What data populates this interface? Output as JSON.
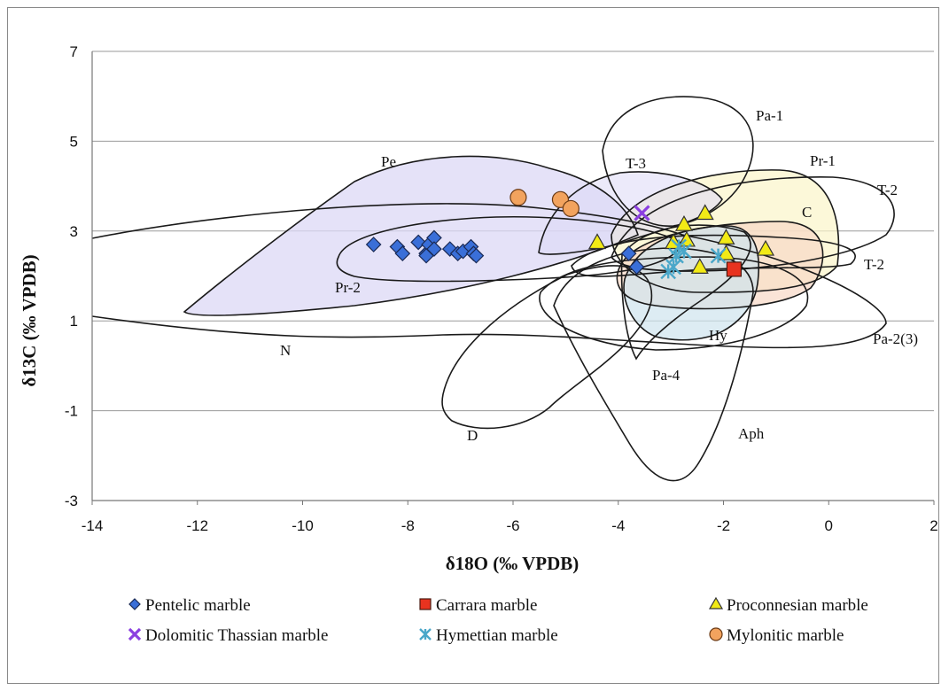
{
  "chart_data": {
    "type": "scatter",
    "xlabel": "δ18O (‰ VPDB)",
    "ylabel": "δ13C (‰ VPDB)",
    "xlim": [
      -14,
      2
    ],
    "ylim": [
      -3,
      7
    ],
    "x_ticks": [
      -14,
      -12,
      -10,
      -8,
      -6,
      -4,
      -2,
      0,
      2
    ],
    "y_ticks": [
      -3,
      -1,
      1,
      3,
      5,
      7
    ],
    "grid": "horizontal",
    "legend_position": "bottom",
    "region_labels": [
      "Pa-1",
      "Pe",
      "T-3",
      "Pr-1",
      "T-2",
      "C",
      "Pr-2",
      "T-2",
      "N",
      "Hy",
      "Pa-2(3)",
      "Pa-4",
      "D",
      "Aph"
    ],
    "series": [
      {
        "name": "Pentelic marble",
        "marker": "diamond",
        "color": "#3a6fd8",
        "points": [
          [
            -8.65,
            2.7
          ],
          [
            -8.2,
            2.65
          ],
          [
            -8.1,
            2.5
          ],
          [
            -7.8,
            2.75
          ],
          [
            -7.65,
            2.5
          ],
          [
            -7.6,
            2.7
          ],
          [
            -7.5,
            2.85
          ],
          [
            -7.5,
            2.6
          ],
          [
            -7.65,
            2.45
          ],
          [
            -7.2,
            2.6
          ],
          [
            -7.05,
            2.5
          ],
          [
            -6.95,
            2.55
          ],
          [
            -6.8,
            2.65
          ],
          [
            -6.75,
            2.5
          ],
          [
            -6.7,
            2.45
          ],
          [
            -3.8,
            2.5
          ],
          [
            -3.65,
            2.2
          ]
        ]
      },
      {
        "name": "Carrara marble",
        "marker": "square",
        "color": "#e8331f",
        "points": [
          [
            -1.8,
            2.15
          ]
        ]
      },
      {
        "name": "Proconnesian marble",
        "marker": "triangle",
        "color": "#f2ea16",
        "points": [
          [
            -4.4,
            2.75
          ],
          [
            -2.95,
            2.75
          ],
          [
            -2.75,
            3.15
          ],
          [
            -2.7,
            2.8
          ],
          [
            -2.35,
            3.4
          ],
          [
            -2.45,
            2.2
          ],
          [
            -1.95,
            2.85
          ],
          [
            -1.95,
            2.5
          ],
          [
            -1.2,
            2.6
          ]
        ]
      },
      {
        "name": "Dolomitic Thassian marble",
        "marker": "x",
        "color": "#8b3fe0",
        "points": [
          [
            -3.55,
            3.4
          ]
        ]
      },
      {
        "name": "Hymettian marble",
        "marker": "asterisk",
        "color": "#4aa7c9",
        "points": [
          [
            -3.05,
            2.1
          ],
          [
            -2.95,
            2.2
          ],
          [
            -2.9,
            2.45
          ],
          [
            -2.85,
            2.65
          ],
          [
            -2.75,
            2.55
          ],
          [
            -2.1,
            2.45
          ]
        ]
      },
      {
        "name": "Mylonitic marble",
        "marker": "circle",
        "color": "#f2a35e",
        "points": [
          [
            -5.9,
            3.75
          ],
          [
            -5.1,
            3.7
          ],
          [
            -4.9,
            3.5
          ]
        ]
      }
    ]
  }
}
